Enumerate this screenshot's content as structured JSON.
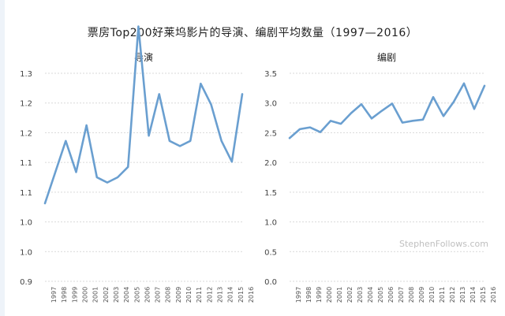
{
  "title": "票房Top200好莱坞影片的导演、编剧平均数量（1997—2016）",
  "watermark": "StephenFollows.com",
  "colors": {
    "line": "#6a9fd0",
    "grid": "#d9d9d9"
  },
  "chart_data": [
    {
      "type": "line",
      "title": "导演",
      "x": [
        "1997",
        "1998",
        "1999",
        "2000",
        "2001",
        "2002",
        "2003",
        "2004",
        "2005",
        "2006",
        "2007",
        "2008",
        "2009",
        "2010",
        "2011",
        "2012",
        "2013",
        "2014",
        "2015",
        "2016"
      ],
      "series": [
        {
          "values": [
            1.05,
            1.11,
            1.17,
            1.11,
            1.2,
            1.1,
            1.09,
            1.1,
            1.12,
            1.39,
            1.18,
            1.26,
            1.17,
            1.16,
            1.17,
            1.28,
            1.24,
            1.17,
            1.13,
            1.26
          ]
        }
      ],
      "ylim": [
        0.9,
        1.3
      ],
      "yticks": [
        "0.9",
        "1.0",
        "1.0",
        "1.1",
        "1.1",
        "1.2",
        "1.2",
        "1.3"
      ],
      "grid": "horizontal-dashed"
    },
    {
      "type": "line",
      "title": "编剧",
      "x": [
        "1997",
        "1998",
        "1999",
        "2000",
        "2001",
        "2002",
        "2003",
        "2004",
        "2005",
        "2006",
        "2007",
        "2008",
        "2009",
        "2010",
        "2011",
        "2012",
        "2013",
        "2014",
        "2015",
        "2016"
      ],
      "series": [
        {
          "values": [
            2.41,
            2.56,
            2.59,
            2.51,
            2.7,
            2.65,
            2.83,
            2.98,
            2.74,
            2.87,
            2.99,
            2.67,
            2.7,
            2.72,
            3.1,
            2.78,
            3.02,
            3.33,
            2.9,
            3.29
          ]
        }
      ],
      "ylim": [
        0.0,
        3.5
      ],
      "yticks": [
        "0.0",
        "0.5",
        "1.0",
        "1.5",
        "2.0",
        "2.5",
        "3.0",
        "3.5"
      ],
      "grid": "horizontal-dashed"
    }
  ]
}
